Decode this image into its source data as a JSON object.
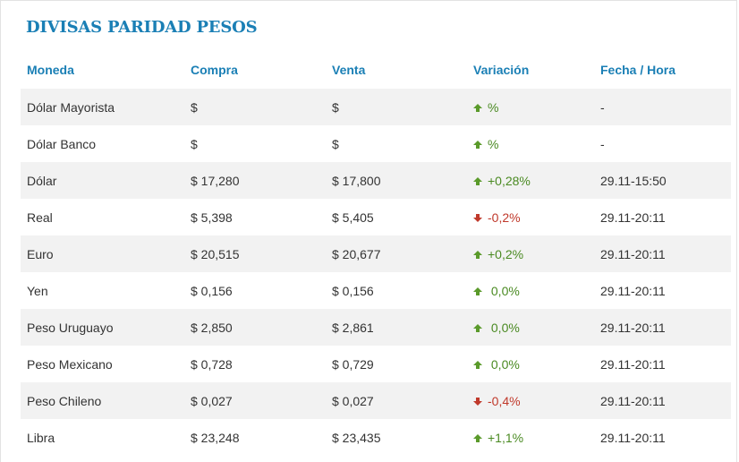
{
  "widget": {
    "title": "DIVISAS PARIDAD PESOS"
  },
  "columns": {
    "moneda": "Moneda",
    "compra": "Compra",
    "venta": "Venta",
    "variacion": "Variación",
    "fecha": "Fecha / Hora"
  },
  "rows": [
    {
      "moneda": "Dólar Mayorista",
      "compra": "$",
      "venta": "$",
      "variacion": "%",
      "direction": "up",
      "fecha": "-"
    },
    {
      "moneda": "Dólar Banco",
      "compra": "$",
      "venta": "$",
      "variacion": "%",
      "direction": "up",
      "fecha": "-"
    },
    {
      "moneda": "Dólar",
      "compra": "$ 17,280",
      "venta": "$ 17,800",
      "variacion": "+0,28%",
      "direction": "up",
      "fecha": "29.11-15:50"
    },
    {
      "moneda": "Real",
      "compra": "$ 5,398",
      "venta": "$ 5,405",
      "variacion": "-0,2%",
      "direction": "down",
      "fecha": "29.11-20:11"
    },
    {
      "moneda": "Euro",
      "compra": "$ 20,515",
      "venta": "$ 20,677",
      "variacion": "+0,2%",
      "direction": "up",
      "fecha": "29.11-20:11"
    },
    {
      "moneda": "Yen",
      "compra": "$ 0,156",
      "venta": "$ 0,156",
      "variacion": " 0,0%",
      "direction": "up",
      "fecha": "29.11-20:11"
    },
    {
      "moneda": "Peso Uruguayo",
      "compra": "$ 2,850",
      "venta": "$ 2,861",
      "variacion": " 0,0%",
      "direction": "up",
      "fecha": "29.11-20:11"
    },
    {
      "moneda": "Peso Mexicano",
      "compra": "$ 0,728",
      "venta": "$ 0,729",
      "variacion": " 0,0%",
      "direction": "up",
      "fecha": "29.11-20:11"
    },
    {
      "moneda": "Peso Chileno",
      "compra": "$ 0,027",
      "venta": "$ 0,027",
      "variacion": "-0,4%",
      "direction": "down",
      "fecha": "29.11-20:11"
    },
    {
      "moneda": "Libra",
      "compra": "$ 23,248",
      "venta": "$ 23,435",
      "variacion": "+1,1%",
      "direction": "up",
      "fecha": "29.11-20:11"
    }
  ],
  "colors": {
    "accent": "#1a7fb5",
    "positive": "#4a8a22",
    "negative": "#c0392b",
    "stripe": "#f2f2f2"
  }
}
